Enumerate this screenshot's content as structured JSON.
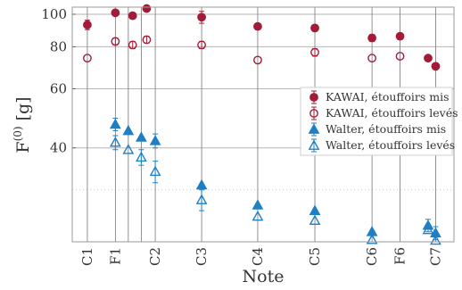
{
  "chart_data": {
    "type": "scatter",
    "xlabel": "Note",
    "ylabel": "F(0) [g]",
    "ylabel_main": "F",
    "ylabel_sup": "(0)",
    "ylabel_unit": "[g]",
    "y_scale": "log",
    "ylim": [
      21,
      105
    ],
    "y_ticks": [
      40,
      60,
      80,
      100
    ],
    "y_minor_ticks": [
      30
    ],
    "notes": [
      "C1",
      "F1",
      "C2",
      "C3",
      "C4",
      "C5",
      "C6",
      "F6",
      "C7"
    ],
    "vertical_gridlines_at": [
      "C1",
      "F1",
      "F1+",
      "F1++",
      "C2",
      "C3",
      "C4",
      "C5",
      "C6",
      "F6",
      "C7"
    ],
    "grid": true,
    "legend_position": "right",
    "series": [
      {
        "name": "KAWAI, étouffoirs mis",
        "marker": "filled-circle",
        "color": "#a31c37",
        "points": [
          {
            "x": 0,
            "y": 93,
            "err": 3
          },
          {
            "x": 1.3,
            "y": 101,
            "err": 2
          },
          {
            "x": 2.1,
            "y": 99,
            "err": 2
          },
          {
            "x": 2.75,
            "y": 104,
            "err": 0
          },
          {
            "x": 5.3,
            "y": 98,
            "err": 4
          },
          {
            "x": 7.9,
            "y": 92,
            "err": 0
          },
          {
            "x": 10.55,
            "y": 91,
            "err": 2
          },
          {
            "x": 13.2,
            "y": 85,
            "err": 2
          },
          {
            "x": 14.5,
            "y": 86,
            "err": 0
          },
          {
            "x": 15.8,
            "y": 74,
            "err": 0
          },
          {
            "x": 16.15,
            "y": 70,
            "err": 0
          }
        ]
      },
      {
        "name": "KAWAI, étouffoirs levés",
        "marker": "open-circle",
        "color": "#a31c37",
        "points": [
          {
            "x": 0,
            "y": 74,
            "err": 0
          },
          {
            "x": 1.3,
            "y": 83,
            "err": 2
          },
          {
            "x": 2.1,
            "y": 81,
            "err": 2
          },
          {
            "x": 2.75,
            "y": 84,
            "err": 2
          },
          {
            "x": 5.3,
            "y": 81,
            "err": 2
          },
          {
            "x": 7.9,
            "y": 73,
            "err": 0
          },
          {
            "x": 10.55,
            "y": 77,
            "err": 2
          },
          {
            "x": 13.2,
            "y": 74,
            "err": 0
          },
          {
            "x": 14.5,
            "y": 75,
            "err": 0
          }
        ]
      },
      {
        "name": "Walter, étouffoirs mis",
        "marker": "filled-triangle",
        "color": "#1f7fc4",
        "points": [
          {
            "x": 1.3,
            "y": 47,
            "err": 2
          },
          {
            "x": 1.9,
            "y": 45,
            "err": 0
          },
          {
            "x": 2.5,
            "y": 43,
            "err": 0
          },
          {
            "x": 3.15,
            "y": 42,
            "err": 2
          },
          {
            "x": 5.3,
            "y": 31,
            "err": 0
          },
          {
            "x": 7.9,
            "y": 27,
            "err": 0
          },
          {
            "x": 10.55,
            "y": 26,
            "err": 0
          },
          {
            "x": 13.2,
            "y": 22.5,
            "err": 0
          },
          {
            "x": 15.8,
            "y": 23.5,
            "err": 1
          },
          {
            "x": 16.15,
            "y": 22.3,
            "err": 1
          }
        ]
      },
      {
        "name": "Walter, étouffoirs levés",
        "marker": "open-triangle",
        "color": "#1f7fc4",
        "points": [
          {
            "x": 1.3,
            "y": 41.5,
            "err": 2
          },
          {
            "x": 1.9,
            "y": 39.5,
            "err": 0
          },
          {
            "x": 2.5,
            "y": 37.5,
            "err": 2
          },
          {
            "x": 3.15,
            "y": 34,
            "err": 2.5
          },
          {
            "x": 5.3,
            "y": 28,
            "err": 2
          },
          {
            "x": 7.9,
            "y": 25,
            "err": 0
          },
          {
            "x": 10.55,
            "y": 24.3,
            "err": 0
          },
          {
            "x": 13.2,
            "y": 21.3,
            "err": 0
          },
          {
            "x": 15.8,
            "y": 22.8,
            "err": 0
          },
          {
            "x": 16.15,
            "y": 21.2,
            "err": 0
          }
        ]
      }
    ]
  },
  "note_positions": [
    0,
    1.3,
    3.15,
    5.3,
    7.9,
    10.55,
    13.2,
    14.5,
    16.15
  ]
}
